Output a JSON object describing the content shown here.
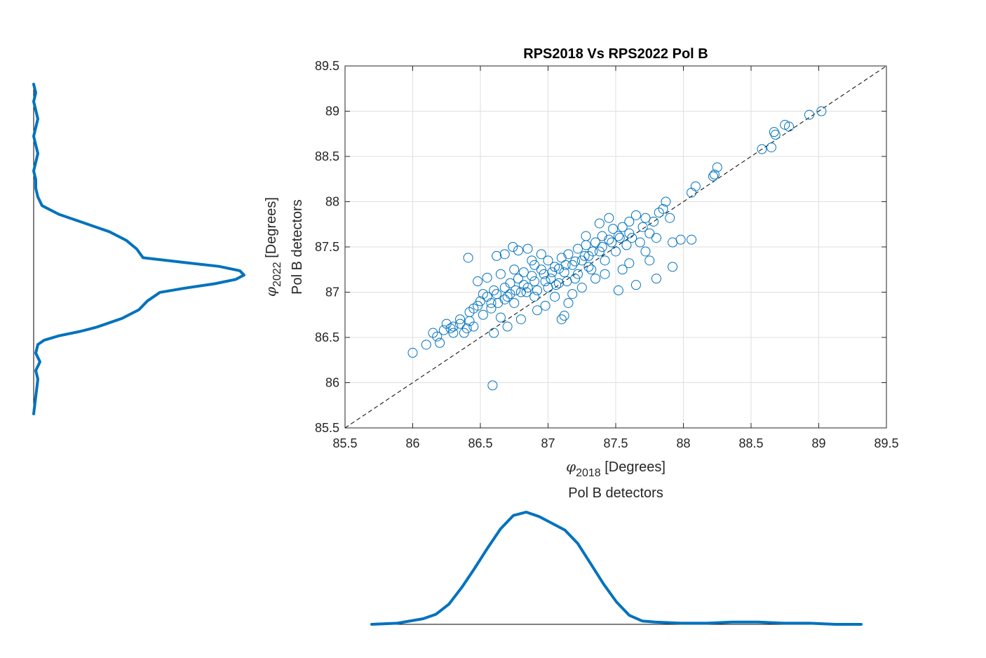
{
  "chart_data": [
    {
      "type": "scatter",
      "title": "RPS2018 Vs RPS2022 Pol B",
      "xlabel": {
        "symbol": "φ",
        "subscript": "2018",
        "unit": " [Degrees]",
        "line2": "Pol B detectors"
      },
      "ylabel": {
        "symbol": "φ",
        "subscript": "2022",
        "unit": " [Degrees]",
        "line2": "Pol B detectors"
      },
      "xlim": [
        85.5,
        89.5
      ],
      "ylim": [
        85.5,
        89.5
      ],
      "xticks": [
        "85.5",
        "86",
        "86.5",
        "87",
        "87.5",
        "88",
        "88.5",
        "89",
        "89.5"
      ],
      "yticks": [
        "85.5",
        "86",
        "86.5",
        "87",
        "87.5",
        "88",
        "88.5",
        "89",
        "89.5"
      ],
      "grid": true,
      "reference_line": {
        "style": "dashed",
        "x": [
          85.5,
          89.5
        ],
        "y": [
          85.5,
          89.5
        ]
      },
      "marker": "open-circle",
      "color": "#0072bd",
      "points": [
        [
          86.0,
          86.33
        ],
        [
          86.1,
          86.42
        ],
        [
          86.15,
          86.55
        ],
        [
          86.2,
          86.44
        ],
        [
          86.18,
          86.51
        ],
        [
          86.23,
          86.58
        ],
        [
          86.25,
          86.65
        ],
        [
          86.3,
          86.62
        ],
        [
          86.35,
          86.7
        ],
        [
          86.38,
          86.55
        ],
        [
          86.4,
          86.6
        ],
        [
          86.42,
          86.78
        ],
        [
          86.45,
          86.62
        ],
        [
          86.48,
          86.85
        ],
        [
          86.5,
          86.9
        ],
        [
          86.52,
          86.75
        ],
        [
          86.55,
          86.95
        ],
        [
          86.58,
          86.82
        ],
        [
          86.6,
          87.02
        ],
        [
          86.63,
          86.88
        ],
        [
          86.65,
          86.72
        ],
        [
          86.68,
          87.05
        ],
        [
          86.7,
          86.95
        ],
        [
          86.72,
          87.1
        ],
        [
          86.75,
          86.88
        ],
        [
          86.78,
          87.15
        ],
        [
          86.8,
          87.0
        ],
        [
          86.82,
          87.22
        ],
        [
          86.85,
          87.05
        ],
        [
          86.88,
          87.18
        ],
        [
          86.9,
          87.3
        ],
        [
          86.92,
          87.02
        ],
        [
          86.95,
          87.25
        ],
        [
          86.98,
          87.12
        ],
        [
          87.0,
          87.35
        ],
        [
          87.02,
          87.15
        ],
        [
          87.05,
          87.28
        ],
        [
          87.08,
          87.1
        ],
        [
          87.1,
          87.38
        ],
        [
          87.12,
          87.22
        ],
        [
          87.15,
          87.42
        ],
        [
          87.18,
          87.3
        ],
        [
          87.2,
          87.15
        ],
        [
          87.22,
          87.48
        ],
        [
          87.25,
          87.35
        ],
        [
          87.28,
          87.52
        ],
        [
          87.3,
          87.4
        ],
        [
          87.32,
          87.25
        ],
        [
          87.35,
          87.55
        ],
        [
          87.38,
          87.45
        ],
        [
          87.4,
          87.62
        ],
        [
          87.42,
          87.35
        ],
        [
          87.45,
          87.58
        ],
        [
          87.48,
          87.7
        ],
        [
          87.5,
          87.45
        ],
        [
          87.52,
          87.62
        ],
        [
          87.55,
          87.72
        ],
        [
          87.58,
          87.52
        ],
        [
          87.6,
          87.78
        ],
        [
          87.62,
          87.6
        ],
        [
          87.65,
          87.85
        ],
        [
          87.68,
          87.55
        ],
        [
          87.7,
          87.72
        ],
        [
          87.72,
          87.82
        ],
        [
          87.75,
          87.65
        ],
        [
          87.78,
          87.78
        ],
        [
          87.8,
          87.6
        ],
        [
          87.82,
          87.88
        ],
        [
          87.85,
          87.92
        ],
        [
          87.87,
          88.0
        ],
        [
          87.9,
          87.82
        ],
        [
          87.92,
          87.55
        ],
        [
          87.98,
          87.58
        ],
        [
          88.06,
          87.58
        ],
        [
          88.06,
          88.1
        ],
        [
          88.09,
          88.17
        ],
        [
          88.22,
          88.28
        ],
        [
          88.23,
          88.3
        ],
        [
          88.25,
          88.38
        ],
        [
          88.58,
          88.58
        ],
        [
          88.65,
          88.6
        ],
        [
          88.67,
          88.77
        ],
        [
          88.68,
          88.74
        ],
        [
          88.75,
          88.85
        ],
        [
          88.78,
          88.83
        ],
        [
          88.93,
          88.96
        ],
        [
          89.02,
          89.0
        ],
        [
          86.59,
          85.97
        ],
        [
          86.41,
          87.38
        ],
        [
          86.62,
          87.4
        ],
        [
          86.74,
          87.5
        ],
        [
          86.78,
          87.46
        ],
        [
          86.85,
          87.48
        ],
        [
          87.52,
          87.02
        ],
        [
          87.1,
          86.7
        ],
        [
          87.12,
          86.74
        ],
        [
          87.15,
          86.88
        ],
        [
          87.65,
          87.08
        ],
        [
          87.92,
          87.28
        ],
        [
          87.8,
          87.15
        ],
        [
          87.75,
          87.35
        ],
        [
          86.55,
          87.16
        ],
        [
          86.48,
          87.12
        ],
        [
          86.68,
          87.42
        ],
        [
          87.55,
          87.25
        ],
        [
          87.6,
          87.32
        ],
        [
          87.72,
          87.45
        ],
        [
          87.45,
          87.82
        ],
        [
          87.38,
          87.76
        ],
        [
          87.28,
          87.62
        ],
        [
          86.92,
          86.8
        ],
        [
          86.8,
          86.7
        ],
        [
          86.7,
          86.62
        ],
        [
          86.6,
          86.55
        ],
        [
          86.98,
          86.85
        ],
        [
          87.05,
          86.95
        ],
        [
          87.25,
          87.05
        ],
        [
          87.35,
          87.15
        ],
        [
          87.42,
          87.2
        ],
        [
          87.18,
          86.98
        ],
        [
          86.95,
          87.42
        ],
        [
          86.88,
          87.35
        ],
        [
          86.75,
          87.25
        ],
        [
          86.65,
          87.2
        ],
        [
          86.52,
          86.98
        ],
        [
          86.45,
          86.82
        ],
        [
          86.35,
          86.65
        ],
        [
          86.3,
          86.55
        ],
        [
          86.28,
          86.6
        ],
        [
          86.42,
          86.68
        ],
        [
          86.58,
          86.88
        ],
        [
          86.72,
          86.98
        ],
        [
          86.82,
          87.08
        ],
        [
          86.9,
          87.12
        ],
        [
          86.97,
          87.2
        ],
        [
          87.03,
          87.22
        ],
        [
          87.08,
          87.26
        ],
        [
          87.13,
          87.3
        ],
        [
          87.2,
          87.34
        ],
        [
          87.27,
          87.4
        ],
        [
          87.33,
          87.45
        ],
        [
          87.4,
          87.5
        ],
        [
          87.47,
          87.55
        ],
        [
          87.53,
          87.6
        ],
        [
          87.6,
          87.65
        ],
        [
          86.62,
          86.98
        ],
        [
          86.68,
          86.92
        ],
        [
          86.76,
          87.02
        ],
        [
          86.84,
          87.0
        ],
        [
          86.9,
          86.95
        ],
        [
          87.0,
          87.05
        ],
        [
          87.06,
          87.08
        ],
        [
          87.14,
          87.12
        ],
        [
          87.22,
          87.2
        ],
        [
          87.3,
          87.28
        ]
      ]
    },
    {
      "type": "line",
      "description_role": "marginal density of y (rotated)",
      "x_values": [
        85.5,
        85.7,
        85.9,
        86.0,
        86.1,
        86.2,
        86.3,
        86.35,
        86.4,
        86.45,
        86.5,
        86.6,
        86.7,
        86.8,
        86.9,
        86.95,
        87.0,
        87.05,
        87.1,
        87.15,
        87.2,
        87.25,
        87.3,
        87.4,
        87.5,
        87.6,
        87.7,
        87.8,
        87.9,
        88.0,
        88.1,
        88.2,
        88.3,
        88.4,
        88.5,
        88.6,
        88.7,
        88.8,
        88.9,
        89.0,
        89.1,
        89.2,
        89.3
      ],
      "values": [
        0.0,
        0.01,
        0.02,
        0.01,
        0.03,
        0.01,
        0.02,
        0.05,
        0.12,
        0.22,
        0.3,
        0.42,
        0.5,
        0.54,
        0.6,
        0.72,
        0.86,
        0.96,
        1.0,
        0.98,
        0.88,
        0.7,
        0.52,
        0.49,
        0.44,
        0.36,
        0.24,
        0.12,
        0.04,
        0.02,
        0.01,
        0.01,
        0.0,
        0.01,
        0.02,
        0.01,
        0.0,
        0.01,
        0.02,
        0.01,
        0.0,
        0.01,
        0.0
      ]
    },
    {
      "type": "line",
      "description_role": "marginal density of x",
      "title": "Pol B detectors",
      "x_values": [
        85.8,
        86.0,
        86.2,
        86.3,
        86.4,
        86.5,
        86.6,
        86.7,
        86.8,
        86.9,
        87.0,
        87.1,
        87.2,
        87.3,
        87.4,
        87.5,
        87.6,
        87.7,
        87.8,
        87.9,
        88.0,
        88.2,
        88.4,
        88.6,
        88.8,
        89.0,
        89.2,
        89.4,
        89.6
      ],
      "values": [
        0.0,
        0.01,
        0.05,
        0.09,
        0.18,
        0.33,
        0.5,
        0.68,
        0.85,
        0.97,
        1.0,
        0.96,
        0.9,
        0.84,
        0.72,
        0.54,
        0.36,
        0.2,
        0.08,
        0.03,
        0.02,
        0.01,
        0.01,
        0.02,
        0.02,
        0.01,
        0.01,
        0.0,
        0.0
      ]
    }
  ]
}
